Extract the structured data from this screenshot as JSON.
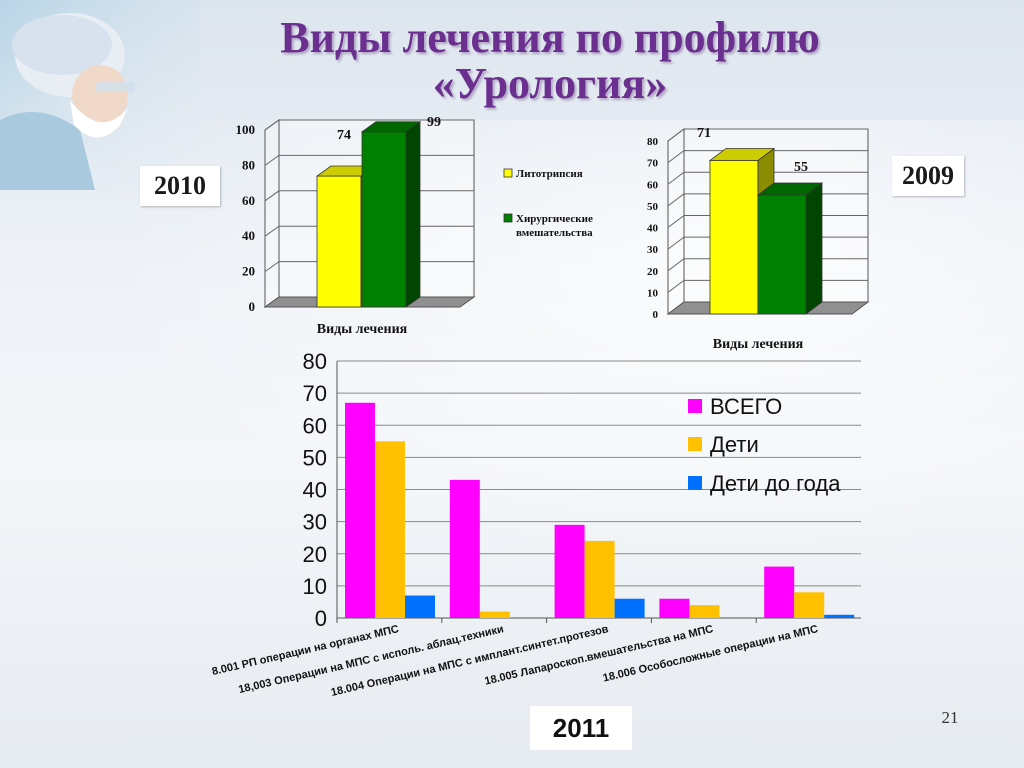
{
  "title_line1": "Виды лечения по профилю",
  "title_line2": "«Урология»",
  "page_number": "21",
  "chart_data": [
    {
      "type": "bar",
      "year_label": "2010",
      "xlabel": "Виды лечения",
      "ylim": [
        0,
        100
      ],
      "yticks": [
        "0",
        "20",
        "40",
        "60",
        "80",
        "100"
      ],
      "series": [
        {
          "name": "Литотрипсия",
          "value": 74,
          "color": "#ffff00"
        },
        {
          "name": "Хирургические вмешательства",
          "value": 99,
          "color": "#008000"
        }
      ]
    },
    {
      "type": "bar",
      "year_label": "2009",
      "xlabel": "Виды лечения",
      "ylim": [
        0,
        80
      ],
      "yticks": [
        "0",
        "10",
        "20",
        "30",
        "40",
        "50",
        "60",
        "70",
        "80"
      ],
      "series": [
        {
          "name": "Литотрипсия",
          "value": 71,
          "color": "#ffff00"
        },
        {
          "name": "Хирургические вмешательства",
          "value": 55,
          "color": "#008000"
        }
      ]
    },
    {
      "type": "bar",
      "year_label": "2011",
      "ylim": [
        0,
        80
      ],
      "yticks": [
        "0",
        "10",
        "20",
        "30",
        "40",
        "50",
        "60",
        "70",
        "80"
      ],
      "categories": [
        "8.001 РП операции на органах МПС",
        "18,003 Операции на МПС с исполь. аблац.техники",
        "18.004 Операции на МПС с имплант.синтет.протезов",
        "18.005 Лапароскоп.вмешательства на МПС",
        "18.006 Особосложные операции на МПС"
      ],
      "series": [
        {
          "name": "ВСЕГО",
          "color": "#ff00ff",
          "values": [
            67,
            43,
            29,
            6,
            16
          ]
        },
        {
          "name": "Дети",
          "color": "#ffc000",
          "values": [
            55,
            2,
            24,
            4,
            8
          ]
        },
        {
          "name": "Дети до года",
          "color": "#0070ff",
          "values": [
            7,
            0,
            6,
            0,
            1
          ]
        }
      ]
    }
  ]
}
